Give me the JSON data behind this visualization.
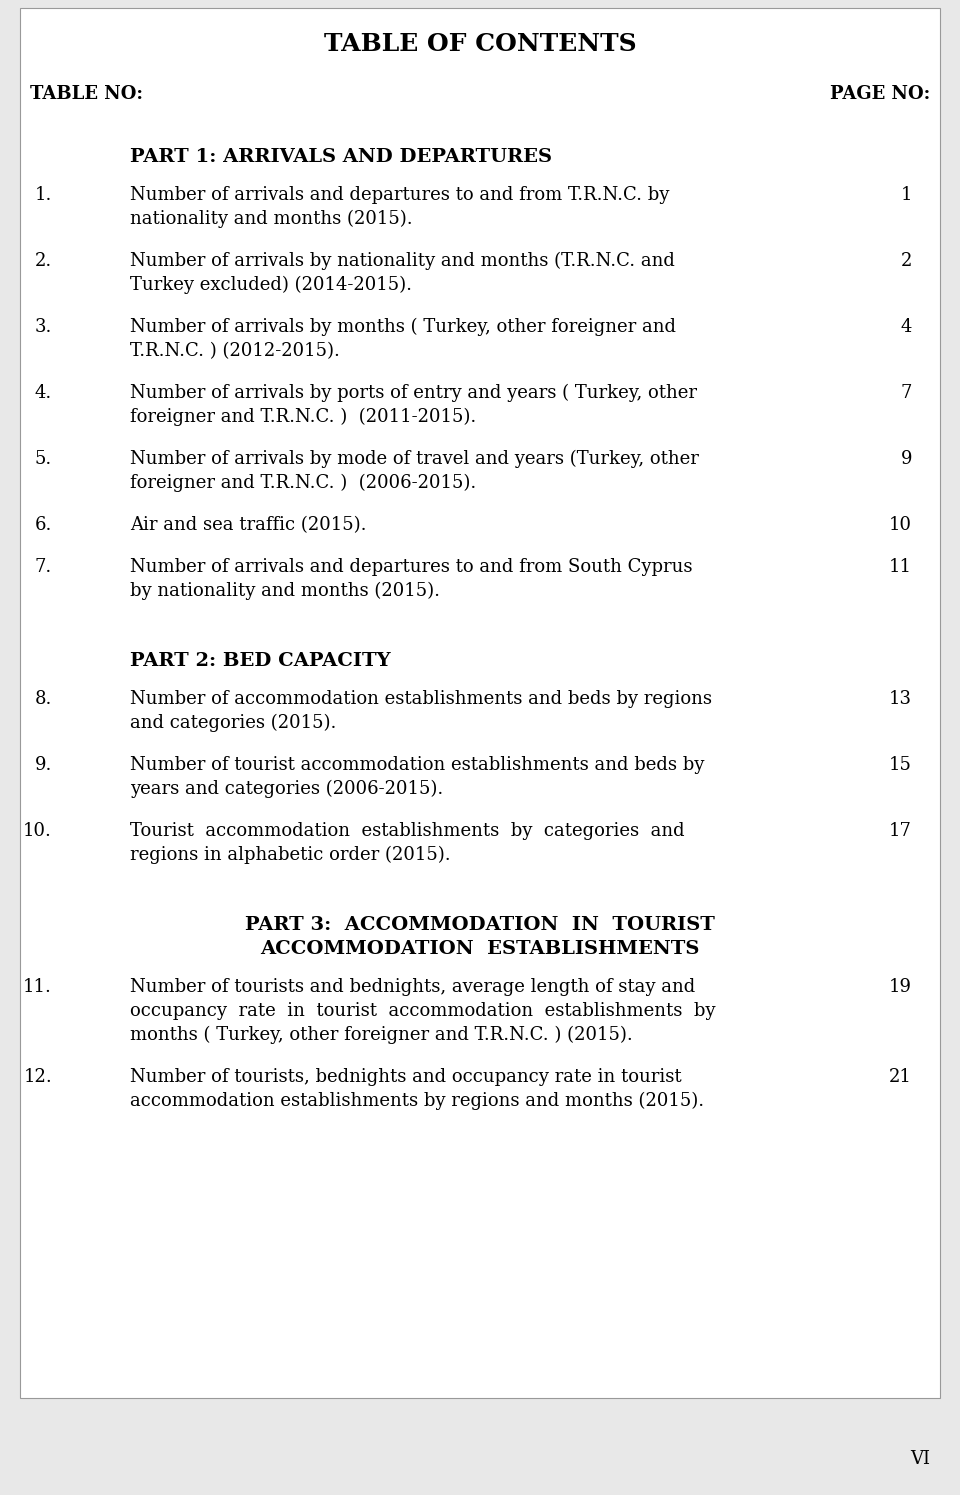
{
  "title": "TABLE OF CONTENTS",
  "header_left": "TABLE NO:",
  "header_right": "PAGE NO:",
  "bg_color": "#e8e8e8",
  "box_color": "#ffffff",
  "text_color": "#000000",
  "parts": [
    {
      "type": "part_header",
      "text": "PART 1: ARRIVALS AND DEPARTURES"
    },
    {
      "type": "entry",
      "num": "1.",
      "text": "Number of arrivals and departures to and from T.R.N.C. by\nnationality and months (2015).",
      "page": "1"
    },
    {
      "type": "entry",
      "num": "2.",
      "text": "Number of arrivals by nationality and months (T.R.N.C. and\nTurkey excluded) (2014-2015).",
      "page": "2"
    },
    {
      "type": "entry",
      "num": "3.",
      "text": "Number of arrivals by months ( Turkey, other foreigner and\nT.R.N.C. ) (2012-2015).",
      "page": "4"
    },
    {
      "type": "entry",
      "num": "4.",
      "text": "Number of arrivals by ports of entry and years ( Turkey, other\nforeigner and T.R.N.C. )  (2011-2015).",
      "page": "7"
    },
    {
      "type": "entry",
      "num": "5.",
      "text": "Number of arrivals by mode of travel and years (Turkey, other\nforeigner and T.R.N.C. )  (2006-2015).",
      "page": "9"
    },
    {
      "type": "entry",
      "num": "6.",
      "text": "Air and sea traffic (2015).",
      "page": "10"
    },
    {
      "type": "entry",
      "num": "7.",
      "text": "Number of arrivals and departures to and from South Cyprus\nby nationality and months (2015).",
      "page": "11"
    },
    {
      "type": "part_header",
      "text": "PART 2: BED CAPACITY"
    },
    {
      "type": "entry",
      "num": "8.",
      "text": "Number of accommodation establishments and beds by regions\nand categories (2015).",
      "page": "13"
    },
    {
      "type": "entry",
      "num": "9.",
      "text": "Number of tourist accommodation establishments and beds by\nyears and categories (2006-2015).",
      "page": "15"
    },
    {
      "type": "entry",
      "num": "10.",
      "text": "Tourist  accommodation  establishments  by  categories  and\nregions in alphabetic order (2015).",
      "page": "17"
    },
    {
      "type": "part_header_2line",
      "text": "PART 3:  ACCOMMODATION  IN  TOURIST\nACCOMMODATION  ESTABLISHMENTS"
    },
    {
      "type": "entry",
      "num": "11.",
      "text": "Number of tourists and bednights, average length of stay and\noccupancy  rate  in  tourist  accommodation  establishments  by\nmonths ( Turkey, other foreigner and T.R.N.C. ) (2015).",
      "page": "19"
    },
    {
      "type": "entry",
      "num": "12.",
      "text": "Number of tourists, bednights and occupancy rate in tourist\naccommodation establishments by regions and months (2015).",
      "page": "21"
    }
  ],
  "footer_text": "VI",
  "title_fontsize": 18,
  "header_fontsize": 13,
  "body_fontsize": 13,
  "bold_fontsize": 14
}
